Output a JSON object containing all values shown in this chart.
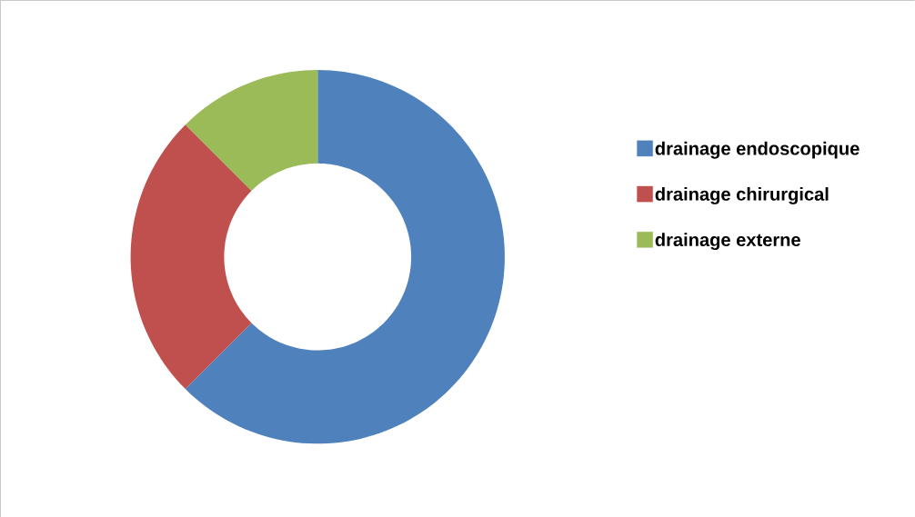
{
  "chart_data": {
    "type": "donut",
    "categories": [
      "drainage endoscopique",
      "drainage chirurgical",
      "drainage externe"
    ],
    "values": [
      62.5,
      25,
      12.5
    ],
    "colors": [
      "#4f81bd",
      "#c0504d",
      "#9bbb59"
    ],
    "legend": "right"
  }
}
